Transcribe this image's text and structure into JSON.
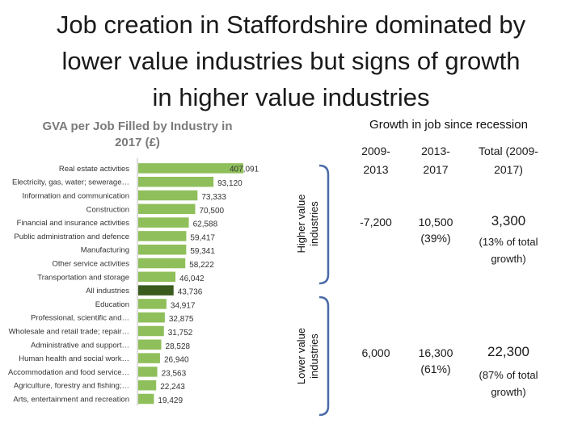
{
  "slide": {
    "title_line1": "Job creation in Staffordshire dominated by",
    "title_line2": "lower value industries but signs of growth",
    "title_line3": "in higher value industries"
  },
  "chart_data": {
    "type": "bar",
    "orientation": "horizontal",
    "title_line1": "GVA per Job Filled by Industry in",
    "title_line2": "2017 (£)",
    "categories": [
      "Real estate activities",
      "Electricity, gas, water; sewerage…",
      "Information and communication",
      "Construction",
      "Financial and insurance activities",
      "Public administration and defence",
      "Manufacturing",
      "Other service activities",
      "Transportation and storage",
      "All industries",
      "Education",
      "Professional, scientific and…",
      "Wholesale and retail trade; repair…",
      "Administrative and support…",
      "Human health and social work…",
      "Accommodation and food service…",
      "Agriculture, forestry and fishing;…",
      "Arts, entertainment and recreation"
    ],
    "values": [
      407091,
      93120,
      73333,
      70500,
      62588,
      59417,
      59341,
      58222,
      46042,
      43736,
      34917,
      32875,
      31752,
      28528,
      26940,
      23563,
      22243,
      19429
    ],
    "value_labels": [
      "407,091",
      "93,120",
      "73,333",
      "70,500",
      "62,588",
      "59,417",
      "59,341",
      "58,222",
      "46,042",
      "43,736",
      "34,917",
      "32,875",
      "31,752",
      "28,528",
      "26,940",
      "23,563",
      "22,243",
      "19,429"
    ],
    "highlight_category": "All industries",
    "bar_color": "#8fbf5a",
    "highlight_color": "#3a5a1e",
    "xlabel": "",
    "ylabel": "",
    "axis_truncated_max": 130000
  },
  "groups": {
    "higher_line1": "Higher value",
    "higher_line2": "industries",
    "lower_line1": "Lower value",
    "lower_line2": "industries",
    "bracket_color": "#4a6aa8"
  },
  "growth_table": {
    "title": "Growth in job since recession",
    "headers": [
      {
        "line1": "2009-",
        "line2": "2013"
      },
      {
        "line1": "2013-",
        "line2": "2017"
      },
      {
        "line1": "Total (2009-",
        "line2": "2017)"
      }
    ],
    "higher": {
      "c1": "-7,200",
      "c2_line1": "10,500",
      "c2_line2": "(39%)",
      "total": "3,300",
      "note_line1": "(13% of total",
      "note_line2": "growth)"
    },
    "lower": {
      "c1": "6,000",
      "c2_line1": "16,300",
      "c2_line2": "(61%)",
      "total": "22,300",
      "note_line1": "(87% of total",
      "note_line2": "growth)"
    }
  }
}
